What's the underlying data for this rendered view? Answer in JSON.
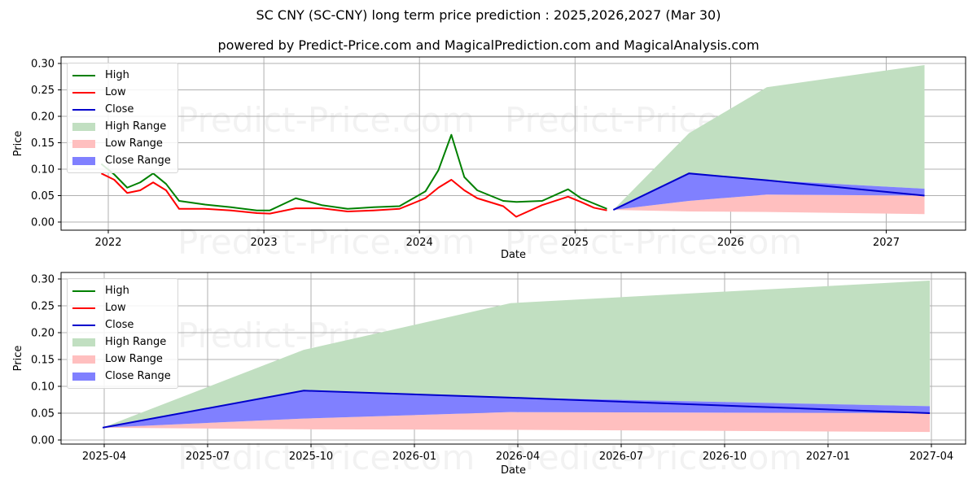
{
  "titles": {
    "main": "SC CNY (SC-CNY) long term price prediction : 2025,2026,2027 (Mar 30)",
    "sub": "powered by Predict-Price.com and MagicalPrediction.com and MagicalAnalysis.com"
  },
  "watermark": "Predict-Price.com",
  "legend": {
    "items": [
      {
        "label": "High",
        "type": "line",
        "color": "#008000"
      },
      {
        "label": "Low",
        "type": "line",
        "color": "#ff0000"
      },
      {
        "label": "Close",
        "type": "line",
        "color": "#0000cc"
      },
      {
        "label": "High Range",
        "type": "patch",
        "color": "#c1dfc1"
      },
      {
        "label": "Low Range",
        "type": "patch",
        "color": "#ffbfbf"
      },
      {
        "label": "Close Range",
        "type": "patch",
        "color": "#8080ff"
      }
    ]
  },
  "colors": {
    "high": "#008000",
    "low": "#ff0000",
    "close": "#0000cc",
    "high_range": "#c1dfc1",
    "low_range": "#ffbfbf",
    "close_range": "#8080ff",
    "grid": "#b0b0b0"
  },
  "chart_data": [
    {
      "type": "line",
      "title": "SC CNY (SC-CNY) long term price prediction : 2025,2026,2027 (Mar 30)",
      "xlabel": "Date",
      "ylabel": "Price",
      "ylim": [
        0.0,
        0.3
      ],
      "yticks": [
        "0.00",
        "0.05",
        "0.10",
        "0.15",
        "0.20",
        "0.25",
        "0.30"
      ],
      "xticks": [
        "2022",
        "2023",
        "2024",
        "2025",
        "2026",
        "2027"
      ],
      "grid": true,
      "legend_position": "upper left",
      "history": {
        "x": [
          "2021-12",
          "2022-01",
          "2022-02",
          "2022-03",
          "2022-04",
          "2022-05",
          "2022-06",
          "2022-08",
          "2022-10",
          "2022-12",
          "2023-01",
          "2023-03",
          "2023-05",
          "2023-07",
          "2023-09",
          "2023-11",
          "2024-01",
          "2024-02",
          "2024-03",
          "2024-04",
          "2024-05",
          "2024-07",
          "2024-08",
          "2024-10",
          "2024-12",
          "2025-01",
          "2025-02",
          "2025-03"
        ],
        "series": [
          {
            "name": "High",
            "values": [
              0.11,
              0.09,
              0.065,
              0.075,
              0.092,
              0.072,
              0.04,
              0.033,
              0.028,
              0.022,
              0.022,
              0.045,
              0.032,
              0.025,
              0.028,
              0.03,
              0.058,
              0.098,
              0.165,
              0.085,
              0.06,
              0.04,
              0.038,
              0.04,
              0.062,
              0.045,
              0.035,
              0.025
            ]
          },
          {
            "name": "Low",
            "values": [
              0.092,
              0.08,
              0.055,
              0.06,
              0.075,
              0.06,
              0.025,
              0.025,
              0.022,
              0.017,
              0.016,
              0.026,
              0.026,
              0.02,
              0.022,
              0.025,
              0.045,
              0.065,
              0.08,
              0.06,
              0.045,
              0.03,
              0.01,
              0.032,
              0.048,
              0.038,
              0.027,
              0.022
            ]
          }
        ]
      },
      "forecast": {
        "x": [
          "2025-03-30",
          "2025-09-25",
          "2026-03-25",
          "2027-03-30"
        ],
        "close": [
          0.023,
          0.092,
          0.079,
          0.05
        ],
        "high_range": {
          "upper": [
            0.023,
            0.168,
            0.255,
            0.297
          ],
          "lower": [
            0.023,
            0.092,
            0.079,
            0.063
          ]
        },
        "close_range": {
          "upper": [
            0.023,
            0.092,
            0.079,
            0.063
          ],
          "lower": [
            0.023,
            0.04,
            0.052,
            0.05
          ]
        },
        "low_range": {
          "upper": [
            0.023,
            0.04,
            0.052,
            0.05
          ],
          "lower": [
            0.023,
            0.02,
            0.019,
            0.015
          ]
        }
      }
    },
    {
      "type": "area",
      "xlabel": "Date",
      "ylabel": "Price",
      "ylim": [
        0.0,
        0.3
      ],
      "yticks": [
        "0.00",
        "0.05",
        "0.10",
        "0.15",
        "0.20",
        "0.25",
        "0.30"
      ],
      "xticks": [
        "2025-04",
        "2025-07",
        "2025-10",
        "2026-01",
        "2026-04",
        "2026-07",
        "2026-10",
        "2027-01",
        "2027-04"
      ],
      "grid": true,
      "legend_position": "upper left",
      "forecast": {
        "x": [
          "2025-03-30",
          "2025-09-25",
          "2026-03-25",
          "2027-03-30"
        ],
        "close": [
          0.023,
          0.092,
          0.079,
          0.05
        ],
        "high_range": {
          "upper": [
            0.023,
            0.168,
            0.255,
            0.297
          ],
          "lower": [
            0.023,
            0.092,
            0.079,
            0.063
          ]
        },
        "close_range": {
          "upper": [
            0.023,
            0.092,
            0.079,
            0.063
          ],
          "lower": [
            0.023,
            0.04,
            0.052,
            0.05
          ]
        },
        "low_range": {
          "upper": [
            0.023,
            0.04,
            0.052,
            0.05
          ],
          "lower": [
            0.023,
            0.02,
            0.019,
            0.015
          ]
        }
      }
    }
  ]
}
